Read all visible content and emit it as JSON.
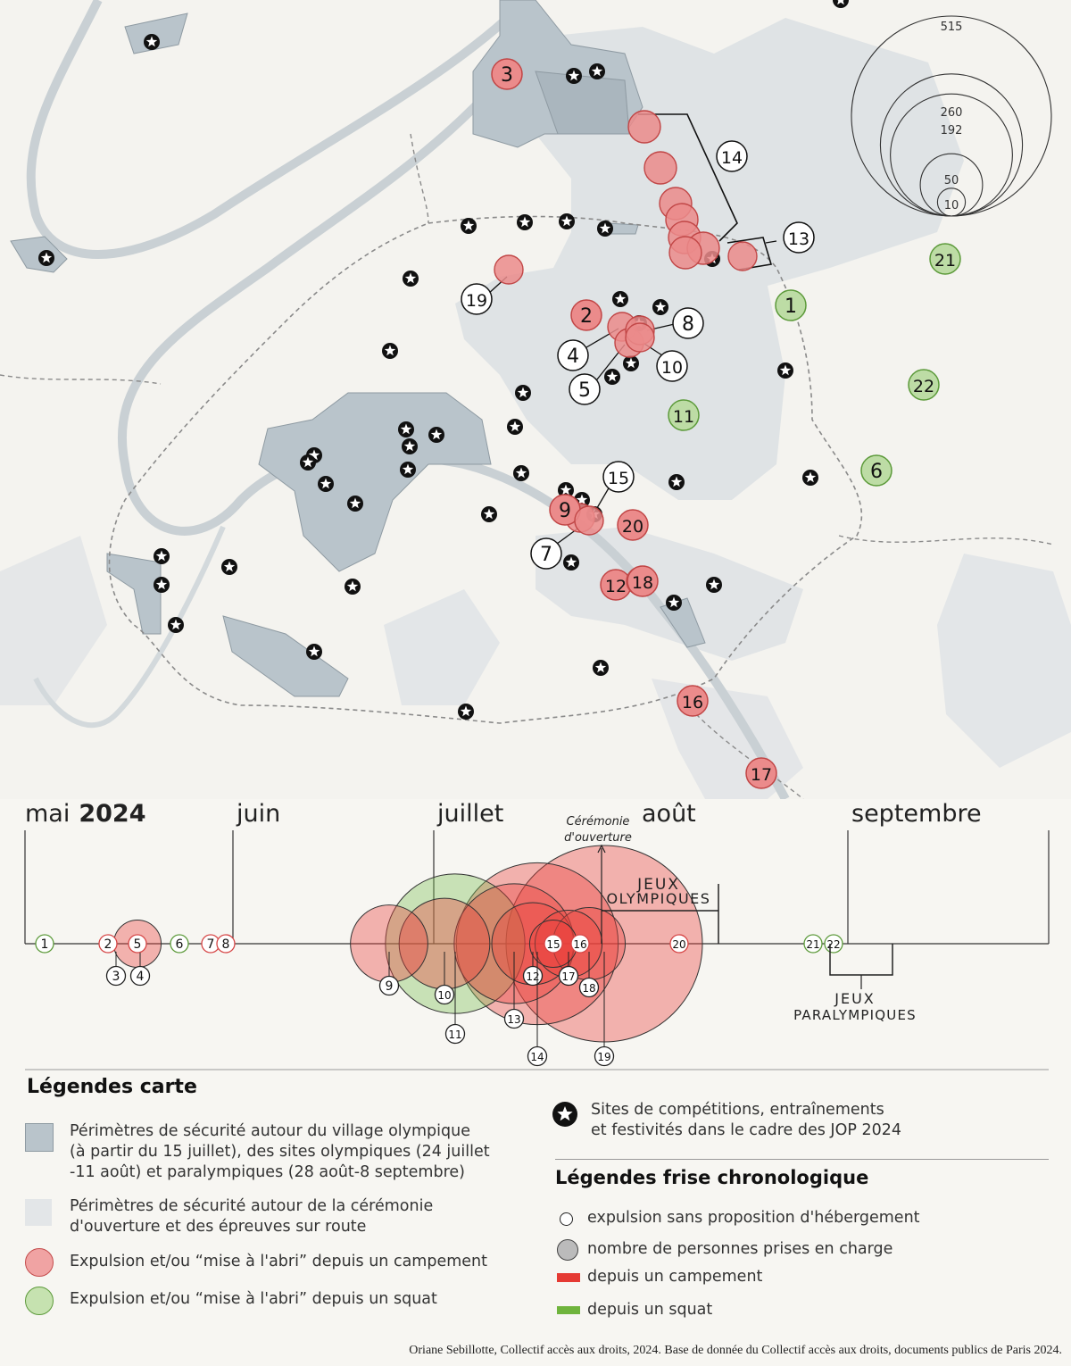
{
  "colors": {
    "background": "#f7f6f2",
    "perimeter_dark": "#b7c3cb",
    "perimeter_light": "#dde1e4",
    "camp": "#e88a8a",
    "camp_stroke": "#c44b4b",
    "squat": "#b9dca0",
    "squat_stroke": "#5c9a3a"
  },
  "map": {
    "scale_legend": {
      "values": [
        "515",
        "260",
        "192",
        "50",
        "10"
      ]
    },
    "events": [
      {
        "n": "1",
        "type": "squat"
      },
      {
        "n": "2",
        "type": "camp"
      },
      {
        "n": "3",
        "type": "camp"
      },
      {
        "n": "4",
        "type": "camp"
      },
      {
        "n": "5",
        "type": "camp"
      },
      {
        "n": "6",
        "type": "squat"
      },
      {
        "n": "7",
        "type": "camp"
      },
      {
        "n": "8",
        "type": "camp"
      },
      {
        "n": "9",
        "type": "camp"
      },
      {
        "n": "10",
        "type": "camp"
      },
      {
        "n": "11",
        "type": "squat"
      },
      {
        "n": "12",
        "type": "camp"
      },
      {
        "n": "13",
        "type": "camp"
      },
      {
        "n": "14",
        "type": "camp"
      },
      {
        "n": "15",
        "type": "camp"
      },
      {
        "n": "16",
        "type": "camp"
      },
      {
        "n": "17",
        "type": "camp"
      },
      {
        "n": "18",
        "type": "camp"
      },
      {
        "n": "19",
        "type": "camp"
      },
      {
        "n": "20",
        "type": "camp"
      },
      {
        "n": "21",
        "type": "squat"
      },
      {
        "n": "22",
        "type": "squat"
      }
    ]
  },
  "timeline": {
    "months": [
      "mai",
      "juin",
      "juillet",
      "août",
      "septembre"
    ],
    "year": "2024",
    "ceremony_label": [
      "Cérémonie",
      "d'ouverture"
    ],
    "jo_label": [
      "JEUX",
      "OLYMPIQUES"
    ],
    "jp_label": [
      "JEUX",
      "PARALYMPIQUES"
    ],
    "markers": [
      {
        "n": "1",
        "type": "squat",
        "people": 10
      },
      {
        "n": "2",
        "type": "camp",
        "people": 10
      },
      {
        "n": "3",
        "type": "camp",
        "people": 0
      },
      {
        "n": "4",
        "type": "camp",
        "people": 0
      },
      {
        "n": "5",
        "type": "camp",
        "people": 30
      },
      {
        "n": "6",
        "type": "squat",
        "people": 10
      },
      {
        "n": "7",
        "type": "camp",
        "people": 10
      },
      {
        "n": "8",
        "type": "camp",
        "people": 10
      },
      {
        "n": "9",
        "type": "camp",
        "people": 80
      },
      {
        "n": "10",
        "type": "camp",
        "people": 110
      },
      {
        "n": "11",
        "type": "squat",
        "people": 260
      },
      {
        "n": "12",
        "type": "camp",
        "people": 90
      },
      {
        "n": "13",
        "type": "camp",
        "people": 192
      },
      {
        "n": "14",
        "type": "camp",
        "people": 350
      },
      {
        "n": "15",
        "type": "camp",
        "people": 30
      },
      {
        "n": "16",
        "type": "camp",
        "people": 10
      },
      {
        "n": "17",
        "type": "camp",
        "people": 60
      },
      {
        "n": "18",
        "type": "camp",
        "people": 70
      },
      {
        "n": "19",
        "type": "camp",
        "people": 515
      },
      {
        "n": "20",
        "type": "camp",
        "people": 10
      },
      {
        "n": "21",
        "type": "squat",
        "people": 10
      },
      {
        "n": "22",
        "type": "squat",
        "people": 10
      }
    ]
  },
  "legend_map": {
    "title": "Légendes carte",
    "dark_perimeter": [
      "Périmètres de sécurité autour du village olympique",
      "(à partir du 15 juillet), des sites olympiques (24 juillet",
      "-11 août) et paralympiques (28 août-8 septembre)"
    ],
    "light_perimeter": [
      "Périmètres de sécurité autour de la cérémonie",
      "d'ouverture et des épreuves sur route"
    ],
    "camp": "Expulsion et/ou “mise à l'abri” depuis un campement",
    "squat": "Expulsion et/ou “mise à l'abri” depuis un squat",
    "star": [
      "Sites de compétitions, entraînements",
      "et festivités dans le cadre des JOP 2024"
    ]
  },
  "legend_timeline": {
    "title": "Légendes frise chronologique",
    "no_housing": "expulsion sans proposition d'hébergement",
    "people": "nombre de personnes prises en charge",
    "camp": "depuis un campement",
    "squat": "depuis un squat"
  },
  "credit": "Oriane Sebillotte, Collectif accès aux droits, 2024. Base de donnée du Collectif accès aux droits, documents publics de Paris 2024."
}
